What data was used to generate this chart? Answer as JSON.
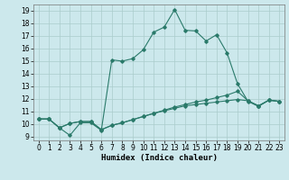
{
  "title": "",
  "xlabel": "Humidex (Indice chaleur)",
  "bg_color": "#cce8ec",
  "grid_color": "#aacccc",
  "line_color": "#2a7a6a",
  "xlim": [
    -0.5,
    23.5
  ],
  "ylim": [
    8.7,
    19.5
  ],
  "xticks": [
    0,
    1,
    2,
    3,
    4,
    5,
    6,
    7,
    8,
    9,
    10,
    11,
    12,
    13,
    14,
    15,
    16,
    17,
    18,
    19,
    20,
    21,
    22,
    23
  ],
  "yticks": [
    9,
    10,
    11,
    12,
    13,
    14,
    15,
    16,
    17,
    18,
    19
  ],
  "line1_x": [
    0,
    1,
    2,
    3,
    4,
    5,
    6,
    7,
    8,
    9,
    10,
    11,
    12,
    13,
    14,
    15,
    16,
    17,
    18,
    19,
    20,
    21,
    22,
    23
  ],
  "line1_y": [
    10.4,
    10.4,
    9.7,
    9.1,
    10.1,
    10.1,
    9.5,
    15.1,
    15.0,
    15.2,
    15.9,
    17.3,
    17.7,
    19.1,
    17.45,
    17.4,
    16.6,
    17.1,
    15.65,
    13.2,
    11.8,
    11.4,
    11.9,
    11.8
  ],
  "line2_x": [
    0,
    1,
    2,
    3,
    4,
    5,
    6,
    7,
    8,
    9,
    10,
    11,
    12,
    13,
    14,
    15,
    16,
    17,
    18,
    19,
    20,
    21,
    22,
    23
  ],
  "line2_y": [
    10.4,
    10.4,
    9.7,
    10.05,
    10.2,
    10.2,
    9.55,
    9.9,
    10.1,
    10.35,
    10.6,
    10.85,
    11.1,
    11.35,
    11.55,
    11.75,
    11.9,
    12.1,
    12.3,
    12.6,
    11.85,
    11.45,
    11.9,
    11.8
  ],
  "line3_x": [
    0,
    1,
    2,
    3,
    4,
    5,
    6,
    7,
    8,
    9,
    10,
    11,
    12,
    13,
    14,
    15,
    16,
    17,
    18,
    19,
    20,
    21,
    22,
    23
  ],
  "line3_y": [
    10.4,
    10.4,
    9.7,
    10.05,
    10.2,
    10.2,
    9.55,
    9.9,
    10.1,
    10.35,
    10.6,
    10.85,
    11.05,
    11.25,
    11.45,
    11.55,
    11.65,
    11.75,
    11.85,
    11.95,
    11.85,
    11.45,
    11.9,
    11.8
  ],
  "marker_size": 1.8,
  "linewidth": 0.8,
  "tick_fontsize": 5.5,
  "xlabel_fontsize": 6.5
}
